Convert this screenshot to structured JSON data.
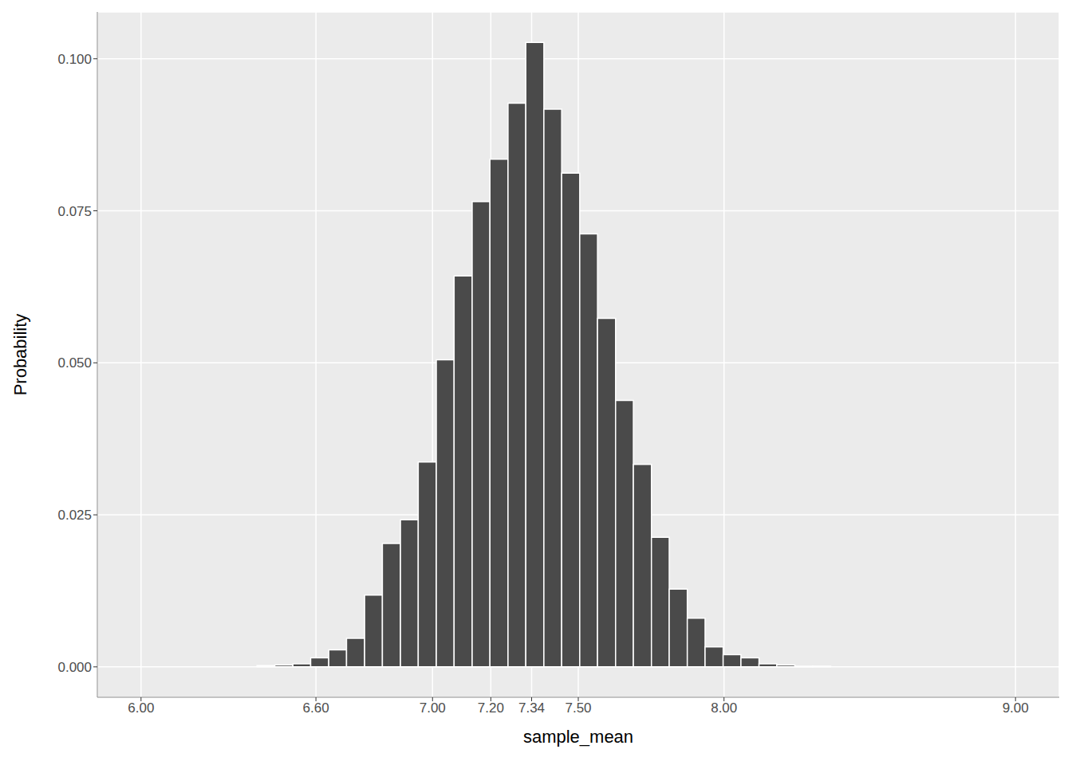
{
  "chart_data": {
    "type": "histogram",
    "x_label": "sample_mean",
    "y_label": "Probability",
    "color": "#4a4a4a",
    "grid": true,
    "bins": [
      6.398,
      6.459,
      6.521,
      6.582,
      6.644,
      6.705,
      6.767,
      6.828,
      6.89,
      6.951,
      7.013,
      7.074,
      7.136,
      7.197,
      7.259,
      7.32,
      7.382,
      7.443,
      7.505,
      7.566,
      7.628,
      7.689,
      7.751,
      7.812,
      7.874,
      7.935,
      7.997,
      8.058,
      8.12,
      8.181,
      8.243,
      8.304,
      8.366
    ],
    "values": [
      0.0002,
      0.0003,
      0.0005,
      0.0015,
      0.0028,
      0.0047,
      0.0118,
      0.0203,
      0.0242,
      0.0337,
      0.0505,
      0.0643,
      0.0765,
      0.0835,
      0.0927,
      0.1027,
      0.0917,
      0.0812,
      0.0712,
      0.0573,
      0.0438,
      0.0333,
      0.0213,
      0.0128,
      0.008,
      0.0033,
      0.002,
      0.0015,
      0.0005,
      0.0003,
      0.0001,
      0.0001
    ],
    "xlim": [
      5.85,
      9.15
    ],
    "xticks": [
      {
        "value": 6,
        "label": "6.00"
      },
      {
        "value": 6.6,
        "label": "6.60"
      },
      {
        "value": 7,
        "label": "7.00"
      },
      {
        "value": 7.2,
        "label": "7.20"
      },
      {
        "value": 7.34,
        "label": "7.34"
      },
      {
        "value": 7.5,
        "label": "7.50"
      },
      {
        "value": 8,
        "label": "8.00"
      },
      {
        "value": 9,
        "label": "9.00"
      }
    ],
    "ylim": [
      -0.005,
      0.1077
    ],
    "yticks": [
      {
        "value": 0,
        "label": "0.000"
      },
      {
        "value": 0.025,
        "label": "0.025"
      },
      {
        "value": 0.05,
        "label": "0.050"
      },
      {
        "value": 0.075,
        "label": "0.075"
      },
      {
        "value": 0.1,
        "label": "0.100"
      }
    ]
  }
}
